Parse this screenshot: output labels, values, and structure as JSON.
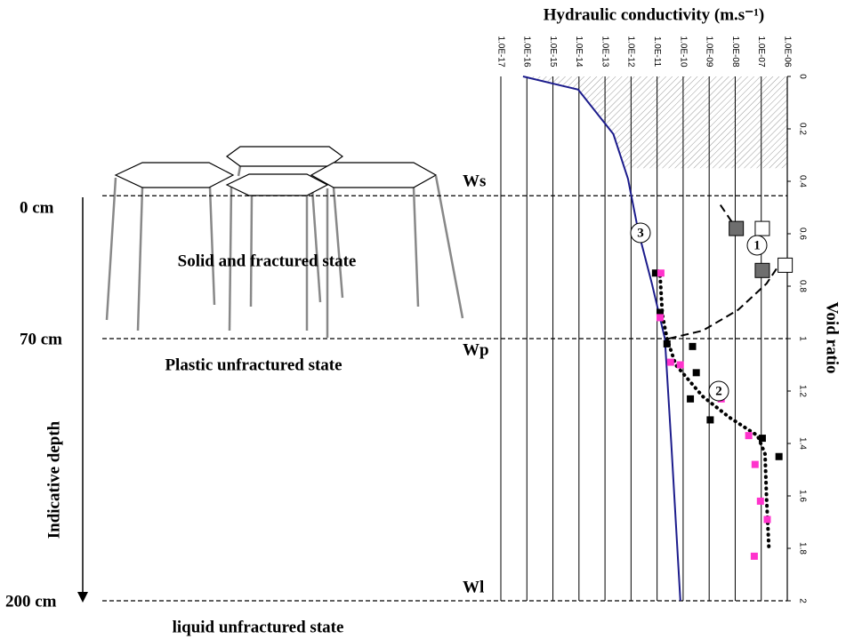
{
  "chart_data": {
    "type": "line",
    "title": "Hydraulic conductivity (m.s⁻¹)",
    "y_label": "Void ratio",
    "xscale": "log",
    "xlim": [
      1e-17,
      1e-06
    ],
    "xticks": [
      {
        "value": 1e-17,
        "label": "1.0E-17"
      },
      {
        "value": 1e-16,
        "label": "1.0E-16"
      },
      {
        "value": 1e-15,
        "label": "1.0E-15"
      },
      {
        "value": 1e-14,
        "label": "1.0E-14"
      },
      {
        "value": 1e-13,
        "label": "1.0E-13"
      },
      {
        "value": 1e-12,
        "label": "1.0E-12"
      },
      {
        "value": 1e-11,
        "label": "1.0E-11"
      },
      {
        "value": 1e-10,
        "label": "1.0E-10"
      },
      {
        "value": 1e-09,
        "label": "1.0E-09"
      },
      {
        "value": 1e-08,
        "label": "1.0E-08"
      },
      {
        "value": 1e-07,
        "label": "1.0E-07"
      },
      {
        "value": 1e-06,
        "label": "1.0E-06"
      }
    ],
    "ylim": [
      0,
      2
    ],
    "y_reversed": true,
    "yticks": [
      0,
      0.2,
      0.4,
      0.6,
      0.8,
      1,
      1.2,
      1.4,
      1.6,
      1.8,
      2
    ],
    "grid": true,
    "shaded_ylim": [
      0,
      0.35
    ],
    "series": [
      {
        "name": "3",
        "color": "#1c1c8c",
        "style": "solid",
        "x": [
          7.1e-17,
          9.3e-15,
          2.1e-13,
          7.6e-13,
          1.9e-12,
          6.3e-12,
          2e-11,
          3.5e-11,
          7.8e-11
        ],
        "values": [
          0,
          0.05,
          0.22,
          0.39,
          0.59,
          0.79,
          1.0,
          1.4,
          2.0
        ]
      },
      {
        "name": "2",
        "color": "#000000",
        "style": "dotted",
        "x": [
          1.3e-11,
          1.6e-11,
          2.4e-11,
          5.2e-11,
          5.6e-10,
          5.9e-09,
          7.2e-08,
          1.4e-07,
          1.6e-07,
          2e-07
        ],
        "values": [
          0.76,
          0.91,
          1.0,
          1.1,
          1.22,
          1.3,
          1.37,
          1.44,
          1.61,
          1.81
        ]
      },
      {
        "name": "1",
        "color": "#000000",
        "style": "dashed",
        "x": [
          2.7e-09,
          1.1e-08,
          null,
          2.8e-11,
          5.6e-10,
          1.3e-08,
          1.6e-07,
          5.6e-07
        ],
        "values": [
          0.49,
          0.58,
          null,
          1.0,
          0.97,
          0.89,
          0.79,
          0.71
        ]
      },
      {
        "color": "#000000",
        "style": "markers",
        "x": [
          8.7e-12,
          1.3e-11,
          2.4e-11,
          2.3e-10,
          3.2e-10,
          1.9e-10,
          1.1e-09,
          1.1e-07,
          4.8e-07
        ],
        "values": [
          0.75,
          0.9,
          1.02,
          1.03,
          1.13,
          1.23,
          1.31,
          1.38,
          1.45
        ]
      },
      {
        "color": "#ff33cc",
        "style": "markers",
        "x": [
          1.4e-11,
          1.3e-11,
          3.3e-11,
          7.8e-11,
          2.9e-09,
          3.3e-08,
          5.8e-08,
          9.3e-08,
          1.7e-07,
          5.4e-08
        ],
        "values": [
          0.75,
          0.92,
          1.09,
          1.1,
          1.23,
          1.37,
          1.48,
          1.62,
          1.69,
          1.83
        ]
      },
      {
        "color": "#6e6e6e",
        "style": "big-markers",
        "x": [
          1.1e-08,
          1.1e-07
        ],
        "values": [
          0.58,
          0.74
        ]
      },
      {
        "color": "#ffffff",
        "style": "big-markers",
        "x": [
          1.1e-07,
          8.3e-07
        ],
        "values": [
          0.58,
          0.72
        ]
      }
    ],
    "limits": [
      {
        "name": "Ws",
        "value": 0.455,
        "depth": "0 cm"
      },
      {
        "name": "Wp",
        "value": 1.0,
        "depth": "70 cm"
      },
      {
        "name": "Wl",
        "value": 2.0,
        "depth": "200 cm"
      }
    ],
    "depth_label": "Indicative depth",
    "states": [
      "Solid and fractured state",
      "Plastic unfractured state",
      "liquid unfractured state"
    ]
  }
}
